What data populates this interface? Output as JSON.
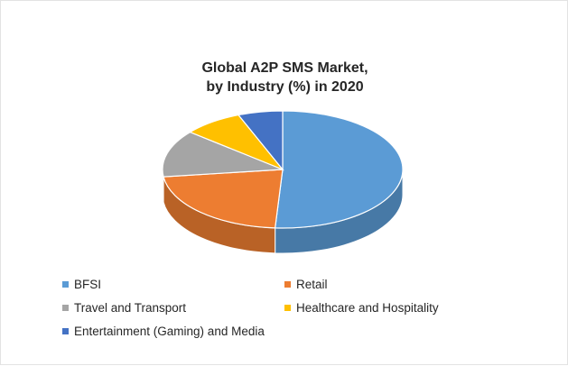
{
  "chart_data": {
    "type": "pie",
    "title_lines": [
      "Global A2P SMS Market,",
      "by Industry (%) in 2020"
    ],
    "categories": [
      "BFSI",
      "Retail",
      "Travel and Transport",
      "Healthcare and Hospitality",
      "Entertainment (Gaming) and Media"
    ],
    "values": [
      51,
      22,
      13,
      8,
      6
    ],
    "colors": [
      "#5B9BD5",
      "#ED7D31",
      "#A5A5A5",
      "#FFC000",
      "#4472C4"
    ],
    "legend_position": "bottom"
  }
}
